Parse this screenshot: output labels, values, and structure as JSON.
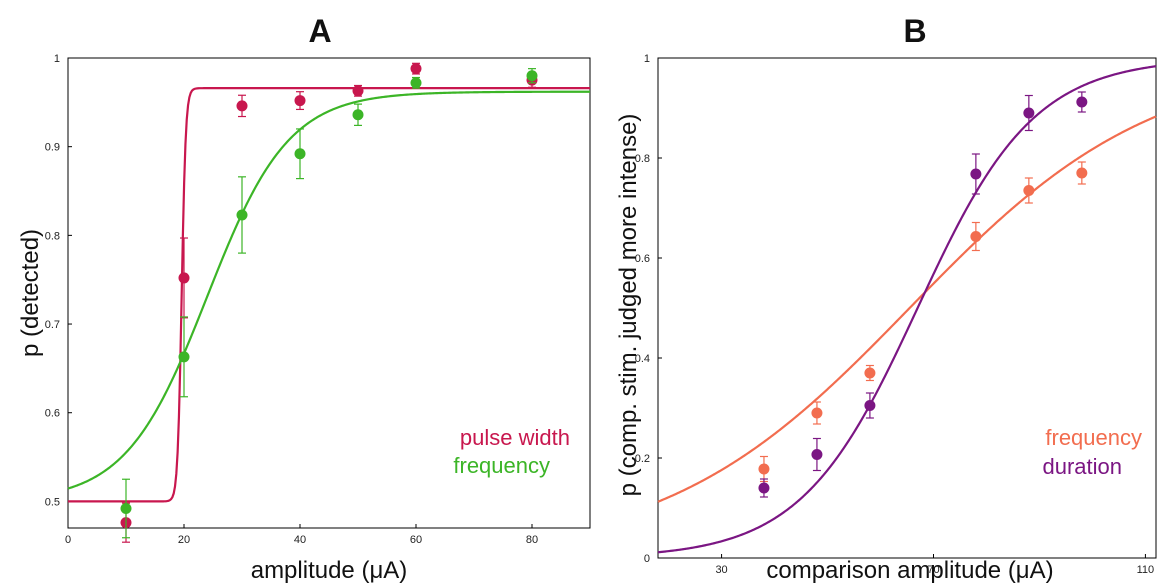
{
  "colors": {
    "pulse_width": "#c8174e",
    "frequency_A": "#3cb527",
    "frequency_B": "#f26d4f",
    "duration": "#7b1683"
  },
  "chart_data": [
    {
      "panel": "A",
      "type": "scatter",
      "title": "A",
      "xlabel": "amplitude (μA)",
      "ylabel": "p (detected)",
      "xlim": [
        0,
        90
      ],
      "ylim": [
        0.47,
        1.0
      ],
      "xticks": [
        0,
        20,
        40,
        60,
        80
      ],
      "yticks": [
        0.5,
        0.6,
        0.7,
        0.8,
        0.9,
        1.0
      ],
      "xtick_labels": [
        "0",
        "20",
        "40",
        "60",
        "80"
      ],
      "ytick_labels": [
        "0.5",
        "0.6",
        "0.7",
        "0.8",
        "0.9",
        "1"
      ],
      "legend": [
        "pulse width",
        "frequency"
      ],
      "legend_position": "lower-right",
      "series": [
        {
          "name": "pulse width",
          "color": "#c8174e",
          "points": [
            {
              "x": 10,
              "y": 0.476,
              "err": 0.022
            },
            {
              "x": 20,
              "y": 0.752,
              "err": 0.045
            },
            {
              "x": 30,
              "y": 0.946,
              "err": 0.012
            },
            {
              "x": 40,
              "y": 0.952,
              "err": 0.01
            },
            {
              "x": 50,
              "y": 0.963,
              "err": 0.006
            },
            {
              "x": 60,
              "y": 0.988,
              "err": 0.006
            },
            {
              "x": 80,
              "y": 0.975,
              "err": 0.008
            }
          ],
          "fit": {
            "type": "logistic",
            "lower": 0.5,
            "upper": 0.966,
            "x0": 19.6,
            "slope": 0.35
          }
        },
        {
          "name": "frequency",
          "color": "#3cb527",
          "points": [
            {
              "x": 10,
              "y": 0.492,
              "err": 0.033
            },
            {
              "x": 20,
              "y": 0.663,
              "err": 0.045
            },
            {
              "x": 30,
              "y": 0.823,
              "err": 0.043
            },
            {
              "x": 40,
              "y": 0.892,
              "err": 0.028
            },
            {
              "x": 50,
              "y": 0.936,
              "err": 0.012
            },
            {
              "x": 60,
              "y": 0.972,
              "err": 0.006
            },
            {
              "x": 80,
              "y": 0.98,
              "err": 0.008
            }
          ],
          "fit": {
            "type": "logistic",
            "lower": 0.5,
            "upper": 0.962,
            "x0": 24.0,
            "slope": 7.0
          }
        }
      ]
    },
    {
      "panel": "B",
      "type": "scatter",
      "title": "B",
      "xlabel": "comparison amplitude (μA)",
      "ylabel": "p (comp. stim. judged more intense)",
      "xlim": [
        18,
        112
      ],
      "ylim": [
        0,
        1.0
      ],
      "xticks": [
        30,
        70,
        110
      ],
      "yticks": [
        0,
        0.2,
        0.4,
        0.6,
        0.8,
        1.0
      ],
      "xtick_labels": [
        "30",
        "70",
        "110"
      ],
      "ytick_labels": [
        "0",
        "0.2",
        "0.4",
        "0.6",
        "0.8",
        "1"
      ],
      "legend": [
        "frequency",
        "duration"
      ],
      "legend_position": "lower-right",
      "series": [
        {
          "name": "frequency",
          "color": "#f26d4f",
          "points": [
            {
              "x": 38,
              "y": 0.178,
              "err": 0.025
            },
            {
              "x": 48,
              "y": 0.29,
              "err": 0.022
            },
            {
              "x": 58,
              "y": 0.37,
              "err": 0.015
            },
            {
              "x": 78,
              "y": 0.643,
              "err": 0.028
            },
            {
              "x": 88,
              "y": 0.735,
              "err": 0.025
            },
            {
              "x": 98,
              "y": 0.77,
              "err": 0.022
            }
          ],
          "fit": {
            "type": "logistic",
            "lower": 0,
            "upper": 1,
            "x0": 65.5,
            "slope": 23.0
          }
        },
        {
          "name": "duration",
          "color": "#7b1683",
          "points": [
            {
              "x": 38,
              "y": 0.14,
              "err": 0.018
            },
            {
              "x": 48,
              "y": 0.207,
              "err": 0.032
            },
            {
              "x": 58,
              "y": 0.305,
              "err": 0.025
            },
            {
              "x": 78,
              "y": 0.768,
              "err": 0.04
            },
            {
              "x": 88,
              "y": 0.89,
              "err": 0.035
            },
            {
              "x": 98,
              "y": 0.912,
              "err": 0.02
            }
          ],
          "fit": {
            "type": "logistic",
            "lower": 0,
            "upper": 1,
            "x0": 67.0,
            "slope": 11.0
          }
        }
      ]
    }
  ]
}
